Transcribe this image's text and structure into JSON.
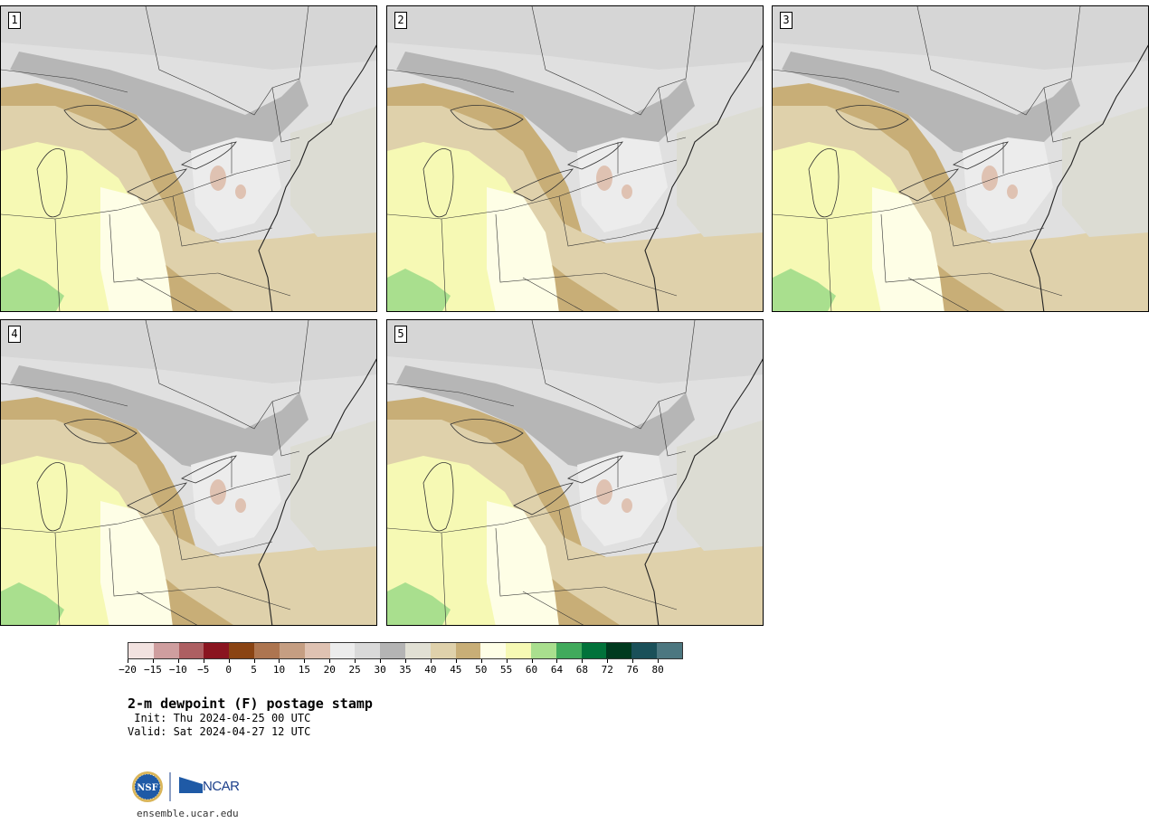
{
  "panels": [
    {
      "label": "1"
    },
    {
      "label": "2"
    },
    {
      "label": "3"
    },
    {
      "label": "4"
    },
    {
      "label": "5"
    }
  ],
  "colorbar": {
    "colors": [
      "#f2e2e0",
      "#cf9e9f",
      "#ad5f62",
      "#8a1520",
      "#8a4413",
      "#ad7550",
      "#c59e82",
      "#dfc2b2",
      "#ececec",
      "#d9d9d9",
      "#b4b4b4",
      "#e1e0d4",
      "#dfd1ab",
      "#c8ae77",
      "#fefee6",
      "#f6f9b4",
      "#a9df8e",
      "#41aa5c",
      "#01723a",
      "#003a1f",
      "#1a5059",
      "#4c7780"
    ],
    "tick_labels": [
      "−20",
      "−15",
      "−10",
      "−5",
      "0",
      "5",
      "10",
      "15",
      "20",
      "25",
      "30",
      "35",
      "40",
      "45",
      "50",
      "55",
      "60",
      "64",
      "68",
      "72",
      "76",
      "80"
    ]
  },
  "title": "2-m dewpoint (F) postage stamp",
  "init": " Init: Thu 2024-04-25 00 UTC",
  "valid": "Valid: Sat 2024-04-27 12 UTC",
  "logo": {
    "nsf": "NSF",
    "ncar": "NCAR"
  },
  "site": "ensemble.ucar.edu"
}
